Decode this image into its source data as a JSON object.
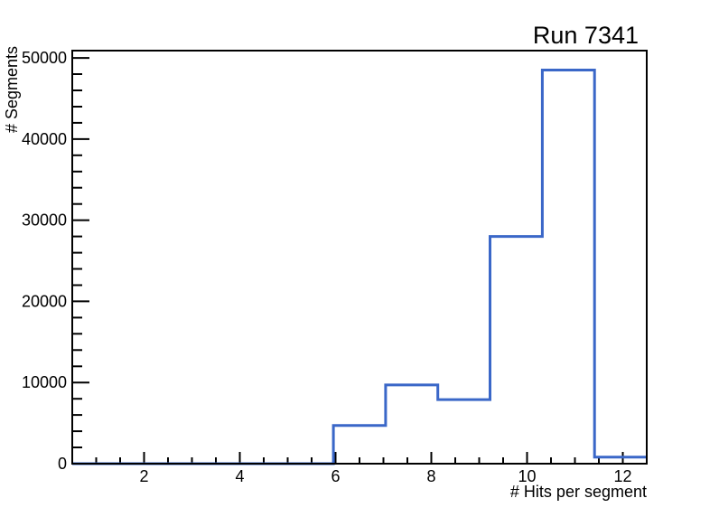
{
  "chart_data": {
    "type": "histogram-step",
    "title": "Run 7341",
    "xlabel": "# Hits per segment",
    "ylabel": "# Segments",
    "xlim": [
      0.5,
      12.5
    ],
    "ylim": [
      0,
      50900
    ],
    "bin_edges": [
      0.5,
      1.5909,
      2.6818,
      3.7727,
      4.8636,
      5.9545,
      7.0455,
      8.1364,
      9.2273,
      10.3182,
      11.4091,
      12.5
    ],
    "values": [
      0,
      0,
      0,
      0,
      0,
      4700,
      9700,
      7900,
      28000,
      48500,
      800
    ],
    "xticks": {
      "major": [
        2,
        4,
        6,
        8,
        10,
        12
      ],
      "major_labels": [
        "2",
        "4",
        "6",
        "8",
        "10",
        "12"
      ],
      "minor_start": 1.0,
      "minor_step": 0.5
    },
    "yticks": {
      "major": [
        0,
        10000,
        20000,
        30000,
        40000,
        50000
      ],
      "major_labels": [
        "0",
        "10000",
        "20000",
        "30000",
        "40000",
        "50000"
      ],
      "minor_start": 2000,
      "minor_step": 2000
    },
    "grid": false,
    "legend": null,
    "line_color": "#3a67c8",
    "axis_color": "#000000",
    "background_color": "#ffffff"
  }
}
